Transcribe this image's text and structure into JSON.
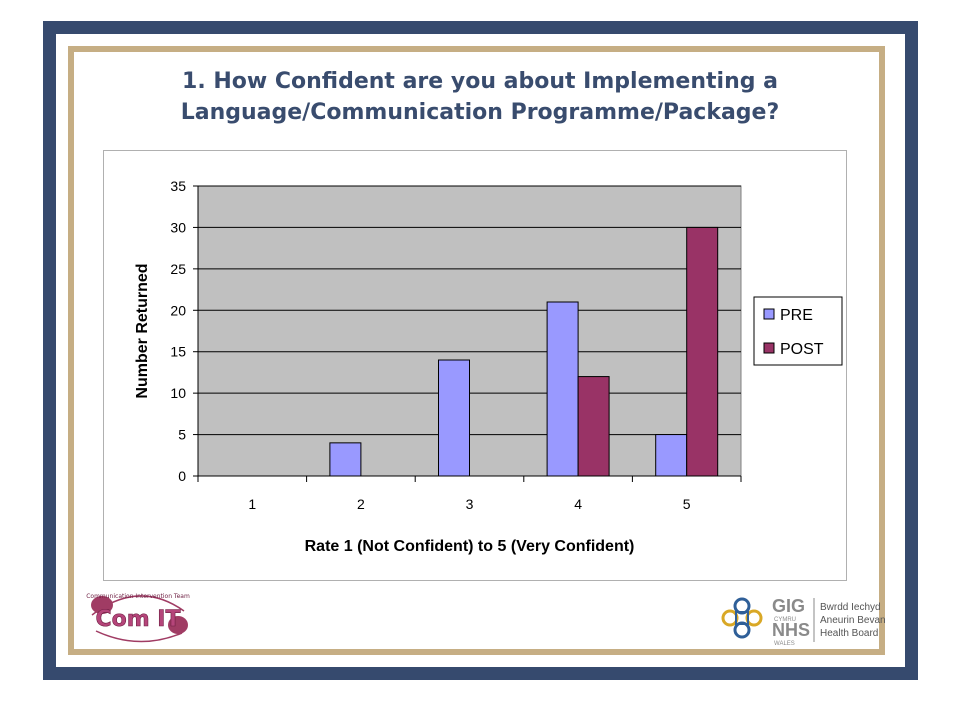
{
  "slide": {
    "title_line1": "1. How Confident are you about Implementing a",
    "title_line2": "Language/Communication Programme/Package?"
  },
  "chart_data": {
    "type": "bar",
    "categories": [
      "1",
      "2",
      "3",
      "4",
      "5"
    ],
    "series": [
      {
        "name": "PRE",
        "values": [
          0,
          4,
          14,
          21,
          5
        ],
        "color": "#9999ff"
      },
      {
        "name": "POST",
        "values": [
          0,
          0,
          0,
          12,
          30
        ],
        "color": "#993366"
      }
    ],
    "xlabel": "Rate 1 (Not Confident) to 5 (Very Confident)",
    "ylabel": "Number Returned",
    "ylim": [
      0,
      35
    ],
    "yticks": [
      0,
      5,
      10,
      15,
      20,
      25,
      30,
      35
    ],
    "grid": true,
    "plot_background": "#c0c0c0",
    "legend_position": "right"
  },
  "logos": {
    "left": {
      "name": "ComIT",
      "text": "Com IT",
      "arc_text": "Communication Intervention Team"
    },
    "right": {
      "gig": "GIG",
      "cymru": "CYMRU",
      "nhs": "NHS",
      "wales": "WALES",
      "board_line1": "Bwrdd Iechyd",
      "board_line2": "Aneurin Bevan",
      "board_line3": "Health Board"
    }
  }
}
